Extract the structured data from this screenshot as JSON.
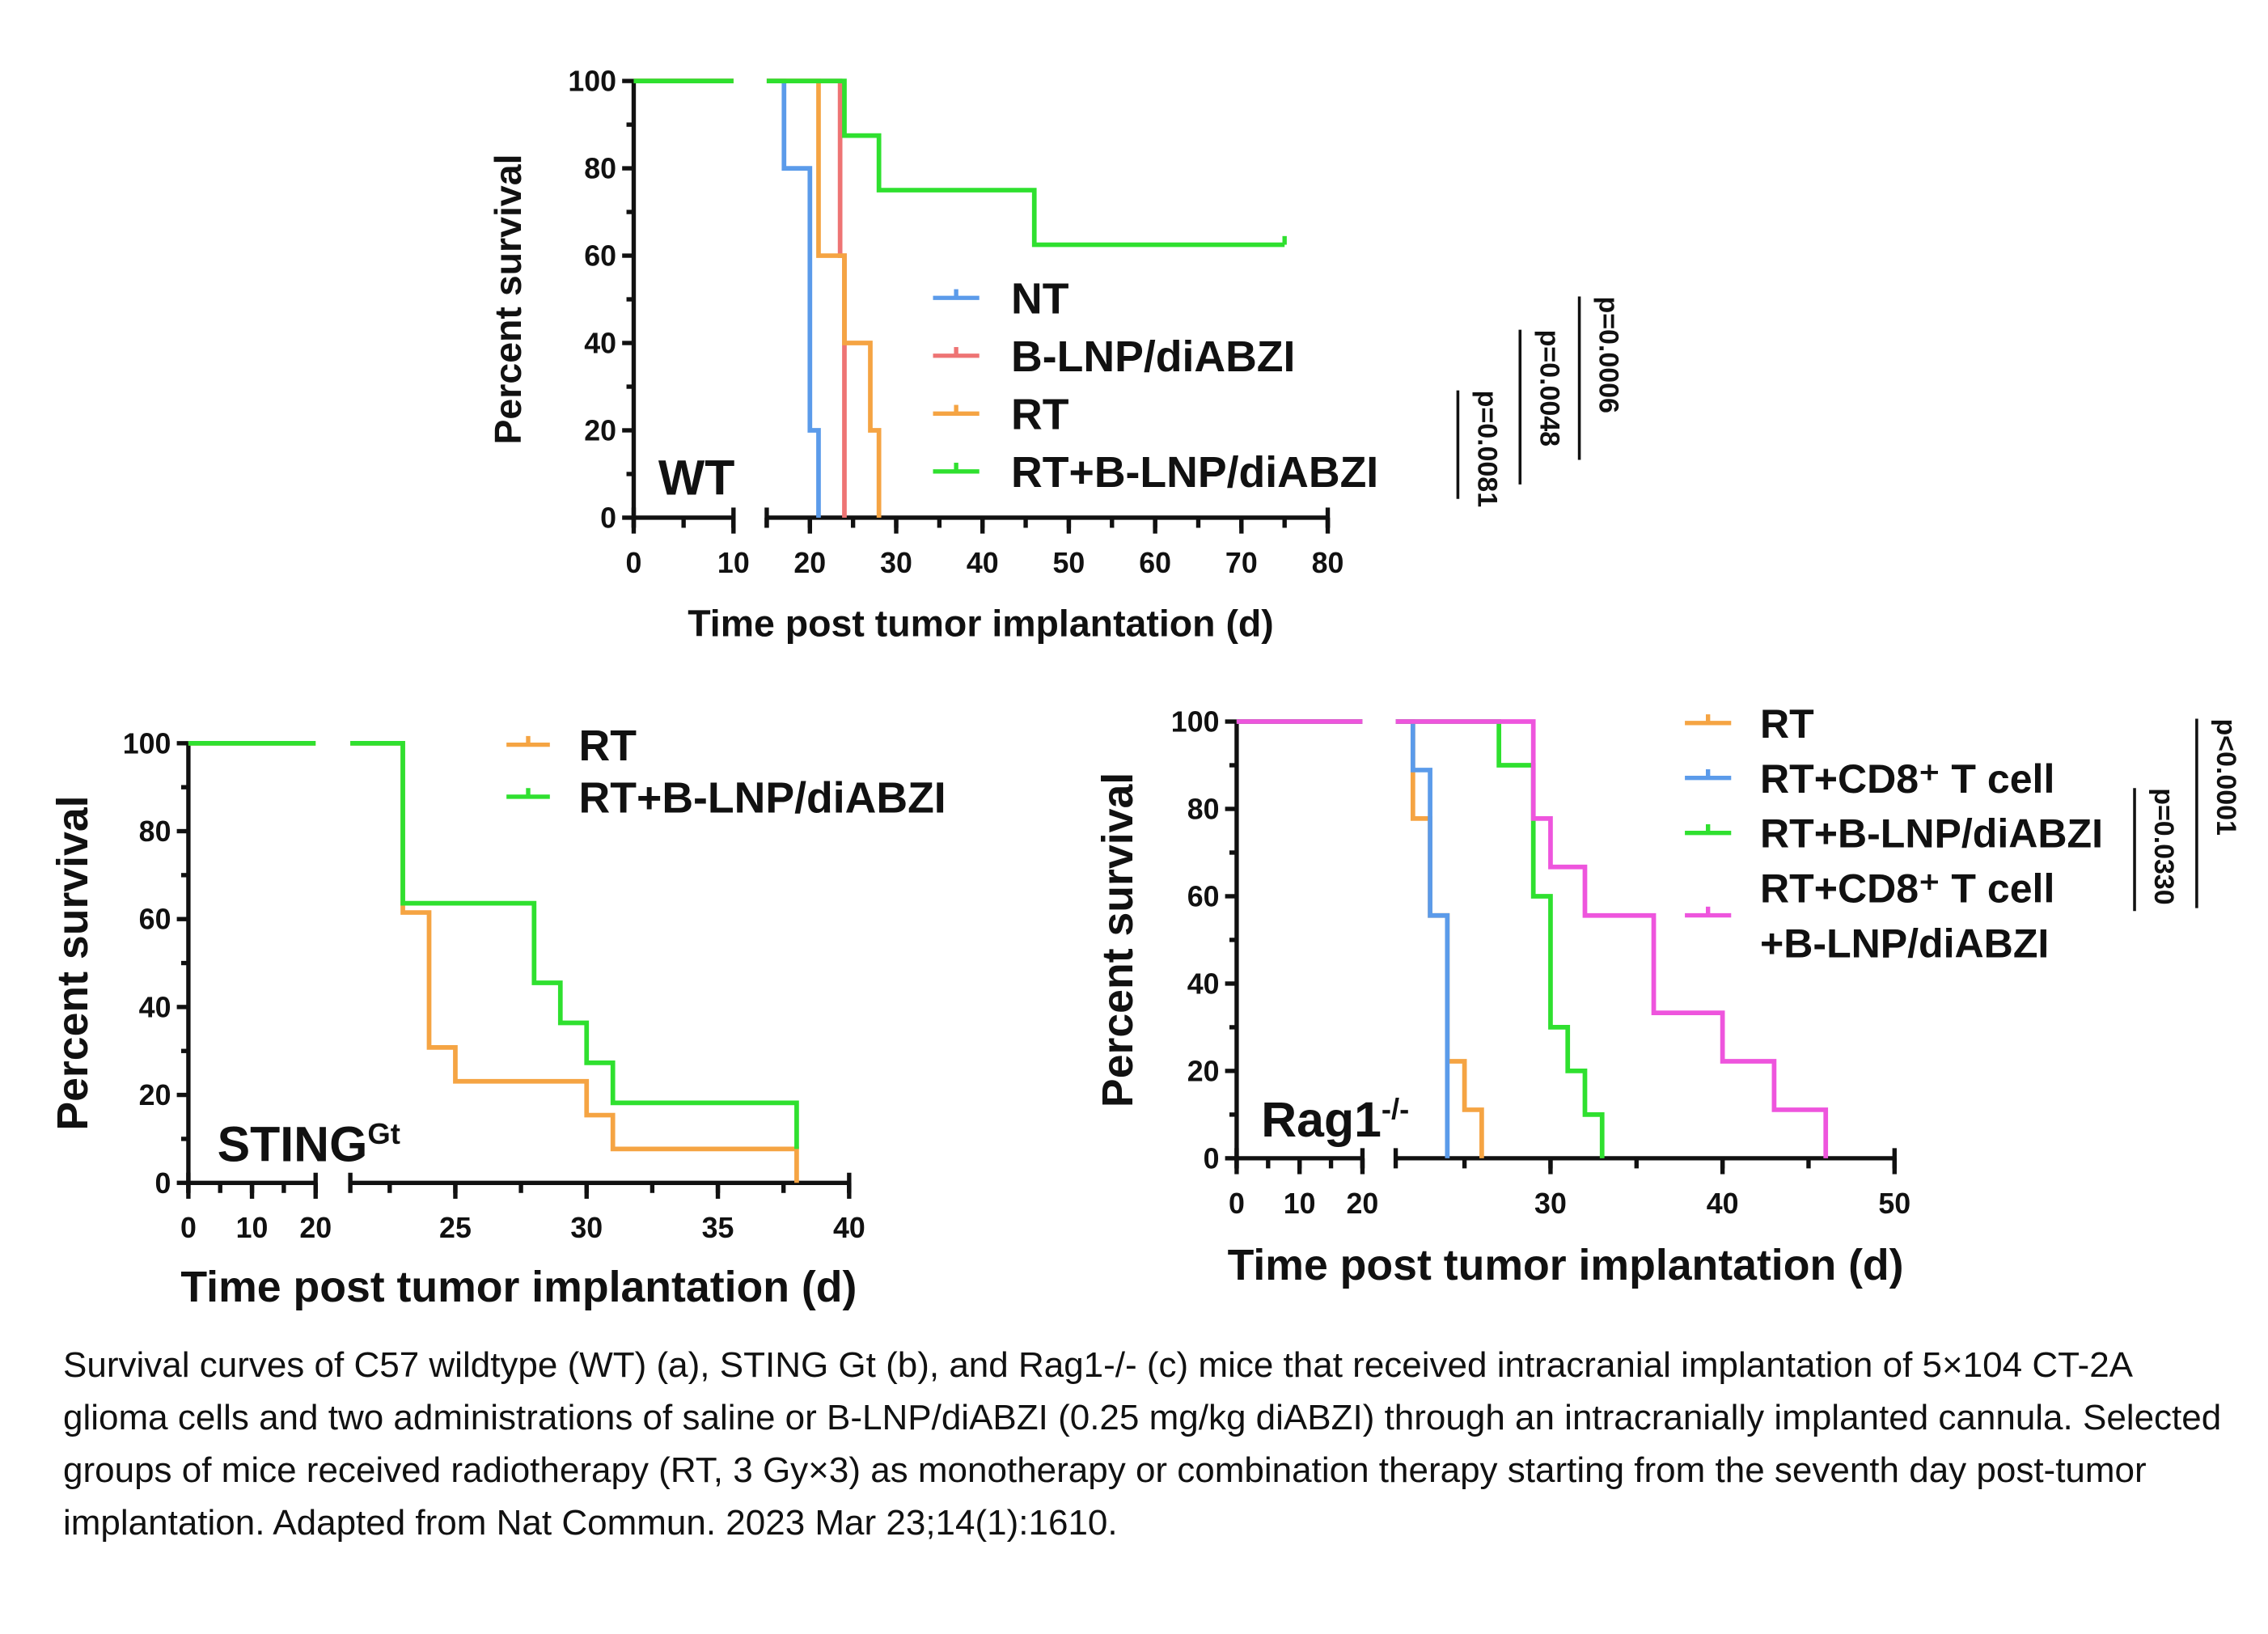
{
  "chart_data": [
    {
      "id": "a",
      "type": "line",
      "subtype": "kaplan-meier",
      "panel_label": "WT",
      "xlabel": "Time post tumor implantation (d)",
      "ylabel": "Percent survival",
      "ylim": [
        0,
        100
      ],
      "yticks": [
        "0",
        "20",
        "40",
        "60",
        "80",
        "100"
      ],
      "x_segments": [
        [
          0,
          10
        ],
        [
          15,
          80
        ]
      ],
      "xticks": [
        0,
        10,
        20,
        30,
        40,
        50,
        60,
        70,
        80
      ],
      "xtick_labels": [
        "0",
        "10",
        "20",
        "30",
        "40",
        "50",
        "60",
        "70",
        "80"
      ],
      "legend_position": "center-right",
      "series": [
        {
          "name": "NT",
          "color": "#5b9bea",
          "steps": [
            [
              17,
              80
            ],
            [
              20,
              20
            ],
            [
              21,
              0
            ]
          ]
        },
        {
          "name": "B-LNP/diABZI",
          "color": "#ee7474",
          "steps": [
            [
              23.5,
              60
            ],
            [
              24,
              0
            ]
          ]
        },
        {
          "name": "RT",
          "color": "#f5a443",
          "steps": [
            [
              21,
              60
            ],
            [
              24,
              40
            ],
            [
              27,
              20
            ],
            [
              28,
              0
            ]
          ]
        },
        {
          "name": "RT+B-LNP/diABZI",
          "color": "#2fe02f",
          "steps": [
            [
              24,
              87.5
            ],
            [
              28,
              75
            ],
            [
              46,
              62.5
            ]
          ],
          "end": 75
        }
      ],
      "pvalues": [
        "p=0.0081",
        "p=0.0048",
        "p=0.0006"
      ]
    },
    {
      "id": "b",
      "type": "line",
      "subtype": "kaplan-meier",
      "panel_label": "STING",
      "panel_label_sup": "Gt",
      "xlabel": "Time post tumor implantation (d)",
      "ylabel": "Percent survival",
      "ylim": [
        0,
        100
      ],
      "yticks": [
        "0",
        "20",
        "40",
        "60",
        "80",
        "100"
      ],
      "x_segments": [
        [
          0,
          20
        ],
        [
          21,
          40
        ]
      ],
      "xticks": [
        0,
        10,
        20,
        25,
        30,
        35,
        40
      ],
      "xtick_labels": [
        "0",
        "10",
        "20",
        "25",
        "30",
        "35",
        "40"
      ],
      "legend_position": "top-right",
      "series": [
        {
          "name": "RT",
          "color": "#f5a443",
          "steps": [
            [
              23,
              61.5
            ],
            [
              24,
              30.8
            ],
            [
              25,
              23.1
            ],
            [
              30,
              15.4
            ],
            [
              31,
              7.7
            ],
            [
              38,
              0
            ]
          ]
        },
        {
          "name": "RT+B-LNP/diABZI",
          "color": "#2fe02f",
          "steps": [
            [
              23,
              63.6
            ],
            [
              28,
              45.5
            ],
            [
              29,
              36.4
            ],
            [
              30,
              27.3
            ],
            [
              31,
              18.2
            ],
            [
              38,
              7.7
            ]
          ]
        }
      ],
      "pvalues": []
    },
    {
      "id": "c",
      "type": "line",
      "subtype": "kaplan-meier",
      "panel_label": "Rag1",
      "panel_label_sup": "-/-",
      "xlabel": "Time post tumor implantation (d)",
      "ylabel": "Percent survival",
      "ylim": [
        0,
        100
      ],
      "yticks": [
        "0",
        "20",
        "40",
        "60",
        "80",
        "100"
      ],
      "x_segments": [
        [
          0,
          20
        ],
        [
          21,
          50
        ]
      ],
      "xticks": [
        0,
        10,
        20,
        30,
        40,
        50
      ],
      "xtick_labels": [
        "0",
        "10",
        "20",
        "30",
        "40",
        "50"
      ],
      "legend_position": "top-right",
      "series": [
        {
          "name": "RT",
          "color": "#f5a443",
          "steps": [
            [
              22,
              77.8
            ],
            [
              23,
              55.6
            ],
            [
              24,
              22.2
            ],
            [
              25,
              11.1
            ],
            [
              26,
              0
            ]
          ]
        },
        {
          "name": "RT+CD8⁺ T cell",
          "color": "#5b9bea",
          "steps": [
            [
              22,
              88.9
            ],
            [
              23,
              55.6
            ],
            [
              24,
              0
            ]
          ]
        },
        {
          "name": "RT+B-LNP/diABZI",
          "color": "#2fe02f",
          "steps": [
            [
              27,
              90
            ],
            [
              29,
              60
            ],
            [
              30,
              30
            ],
            [
              31,
              20
            ],
            [
              32,
              10
            ],
            [
              33,
              0
            ]
          ]
        },
        {
          "name": "RT+CD8⁺ T cell",
          "name_line2": "+B-LNP/diABZI",
          "color": "#ee55dd",
          "steps": [
            [
              29,
              77.8
            ],
            [
              30,
              66.7
            ],
            [
              32,
              55.6
            ],
            [
              36,
              33.3
            ],
            [
              40,
              22.2
            ],
            [
              43,
              11.1
            ],
            [
              46,
              0
            ]
          ]
        }
      ],
      "pvalues": [
        "p=0.0330",
        "p<0.0001"
      ]
    }
  ],
  "caption": "Survival curves of C57 wildtype (WT) (a), STING Gt (b), and Rag1-/- (c) mice that received intracranial implantation of 5×104 CT-2A glioma cells and two administrations of saline or B-LNP/diABZI (0.25 mg/kg diABZI) through an intracranially implanted cannula. Selected groups of mice received radiotherapy (RT, 3 Gy×3) as monotherapy or combination therapy starting from the seventh day post-tumor implantation. Adapted from Nat Commun. 2023 Mar 23;14(1):1610."
}
